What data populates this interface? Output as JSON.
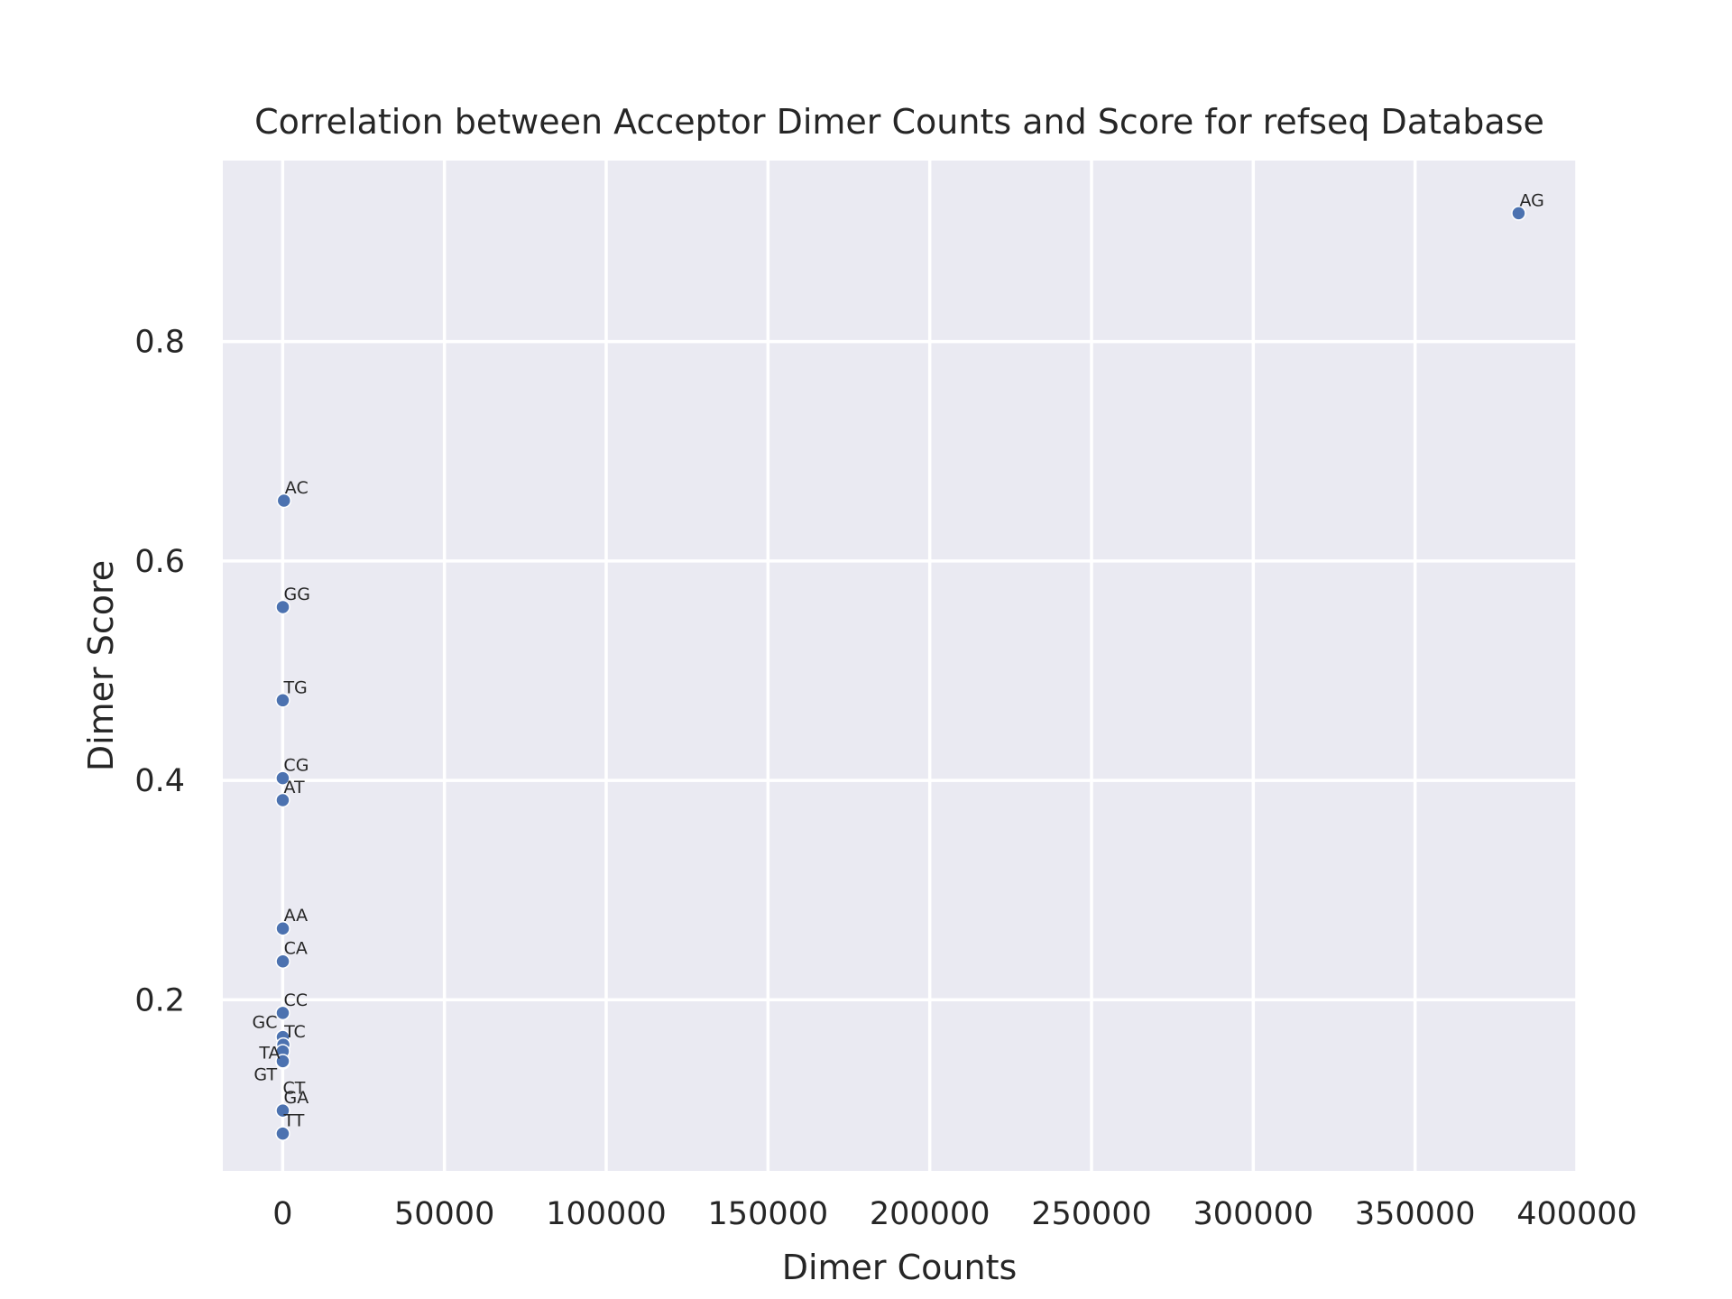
{
  "chart_data": {
    "type": "scatter",
    "title": "Correlation between Acceptor Dimer Counts and Score for refseq Database",
    "xlabel": "Dimer Counts",
    "ylabel": "Dimer Score",
    "xlim": [
      -18500,
      400000
    ],
    "ylim": [
      0.044,
      0.965
    ],
    "xticks": [
      0,
      50000,
      100000,
      150000,
      200000,
      250000,
      300000,
      350000,
      400000
    ],
    "xtick_labels": [
      "0",
      "50000",
      "100000",
      "150000",
      "200000",
      "250000",
      "300000",
      "350000",
      "400000"
    ],
    "yticks": [
      0.2,
      0.4,
      0.6,
      0.8
    ],
    "ytick_labels": [
      "0.2",
      "0.4",
      "0.6",
      "0.8"
    ],
    "grid": true,
    "point_color": "#4c72b0",
    "background_color": "#eaeaf2",
    "points": [
      {
        "label": "AG",
        "x": 382000,
        "y": 0.917
      },
      {
        "label": "AC",
        "x": 400,
        "y": 0.655
      },
      {
        "label": "GG",
        "x": 50,
        "y": 0.558
      },
      {
        "label": "TG",
        "x": 30,
        "y": 0.473
      },
      {
        "label": "CG",
        "x": 20,
        "y": 0.402
      },
      {
        "label": "AT",
        "x": 30,
        "y": 0.382
      },
      {
        "label": "AA",
        "x": 60,
        "y": 0.265
      },
      {
        "label": "CA",
        "x": 60,
        "y": 0.235
      },
      {
        "label": "CC",
        "x": 40,
        "y": 0.188
      },
      {
        "label": "GC",
        "x": 50,
        "y": 0.166
      },
      {
        "label": "TC",
        "x": 200,
        "y": 0.159
      },
      {
        "label": "TA",
        "x": 20,
        "y": 0.153
      },
      {
        "label": "GT",
        "x": 20,
        "y": 0.143
      },
      {
        "label": "CT",
        "x": 40,
        "y": 0.144
      },
      {
        "label": "GA",
        "x": 40,
        "y": 0.099
      },
      {
        "label": "TT",
        "x": 30,
        "y": 0.078
      }
    ]
  }
}
